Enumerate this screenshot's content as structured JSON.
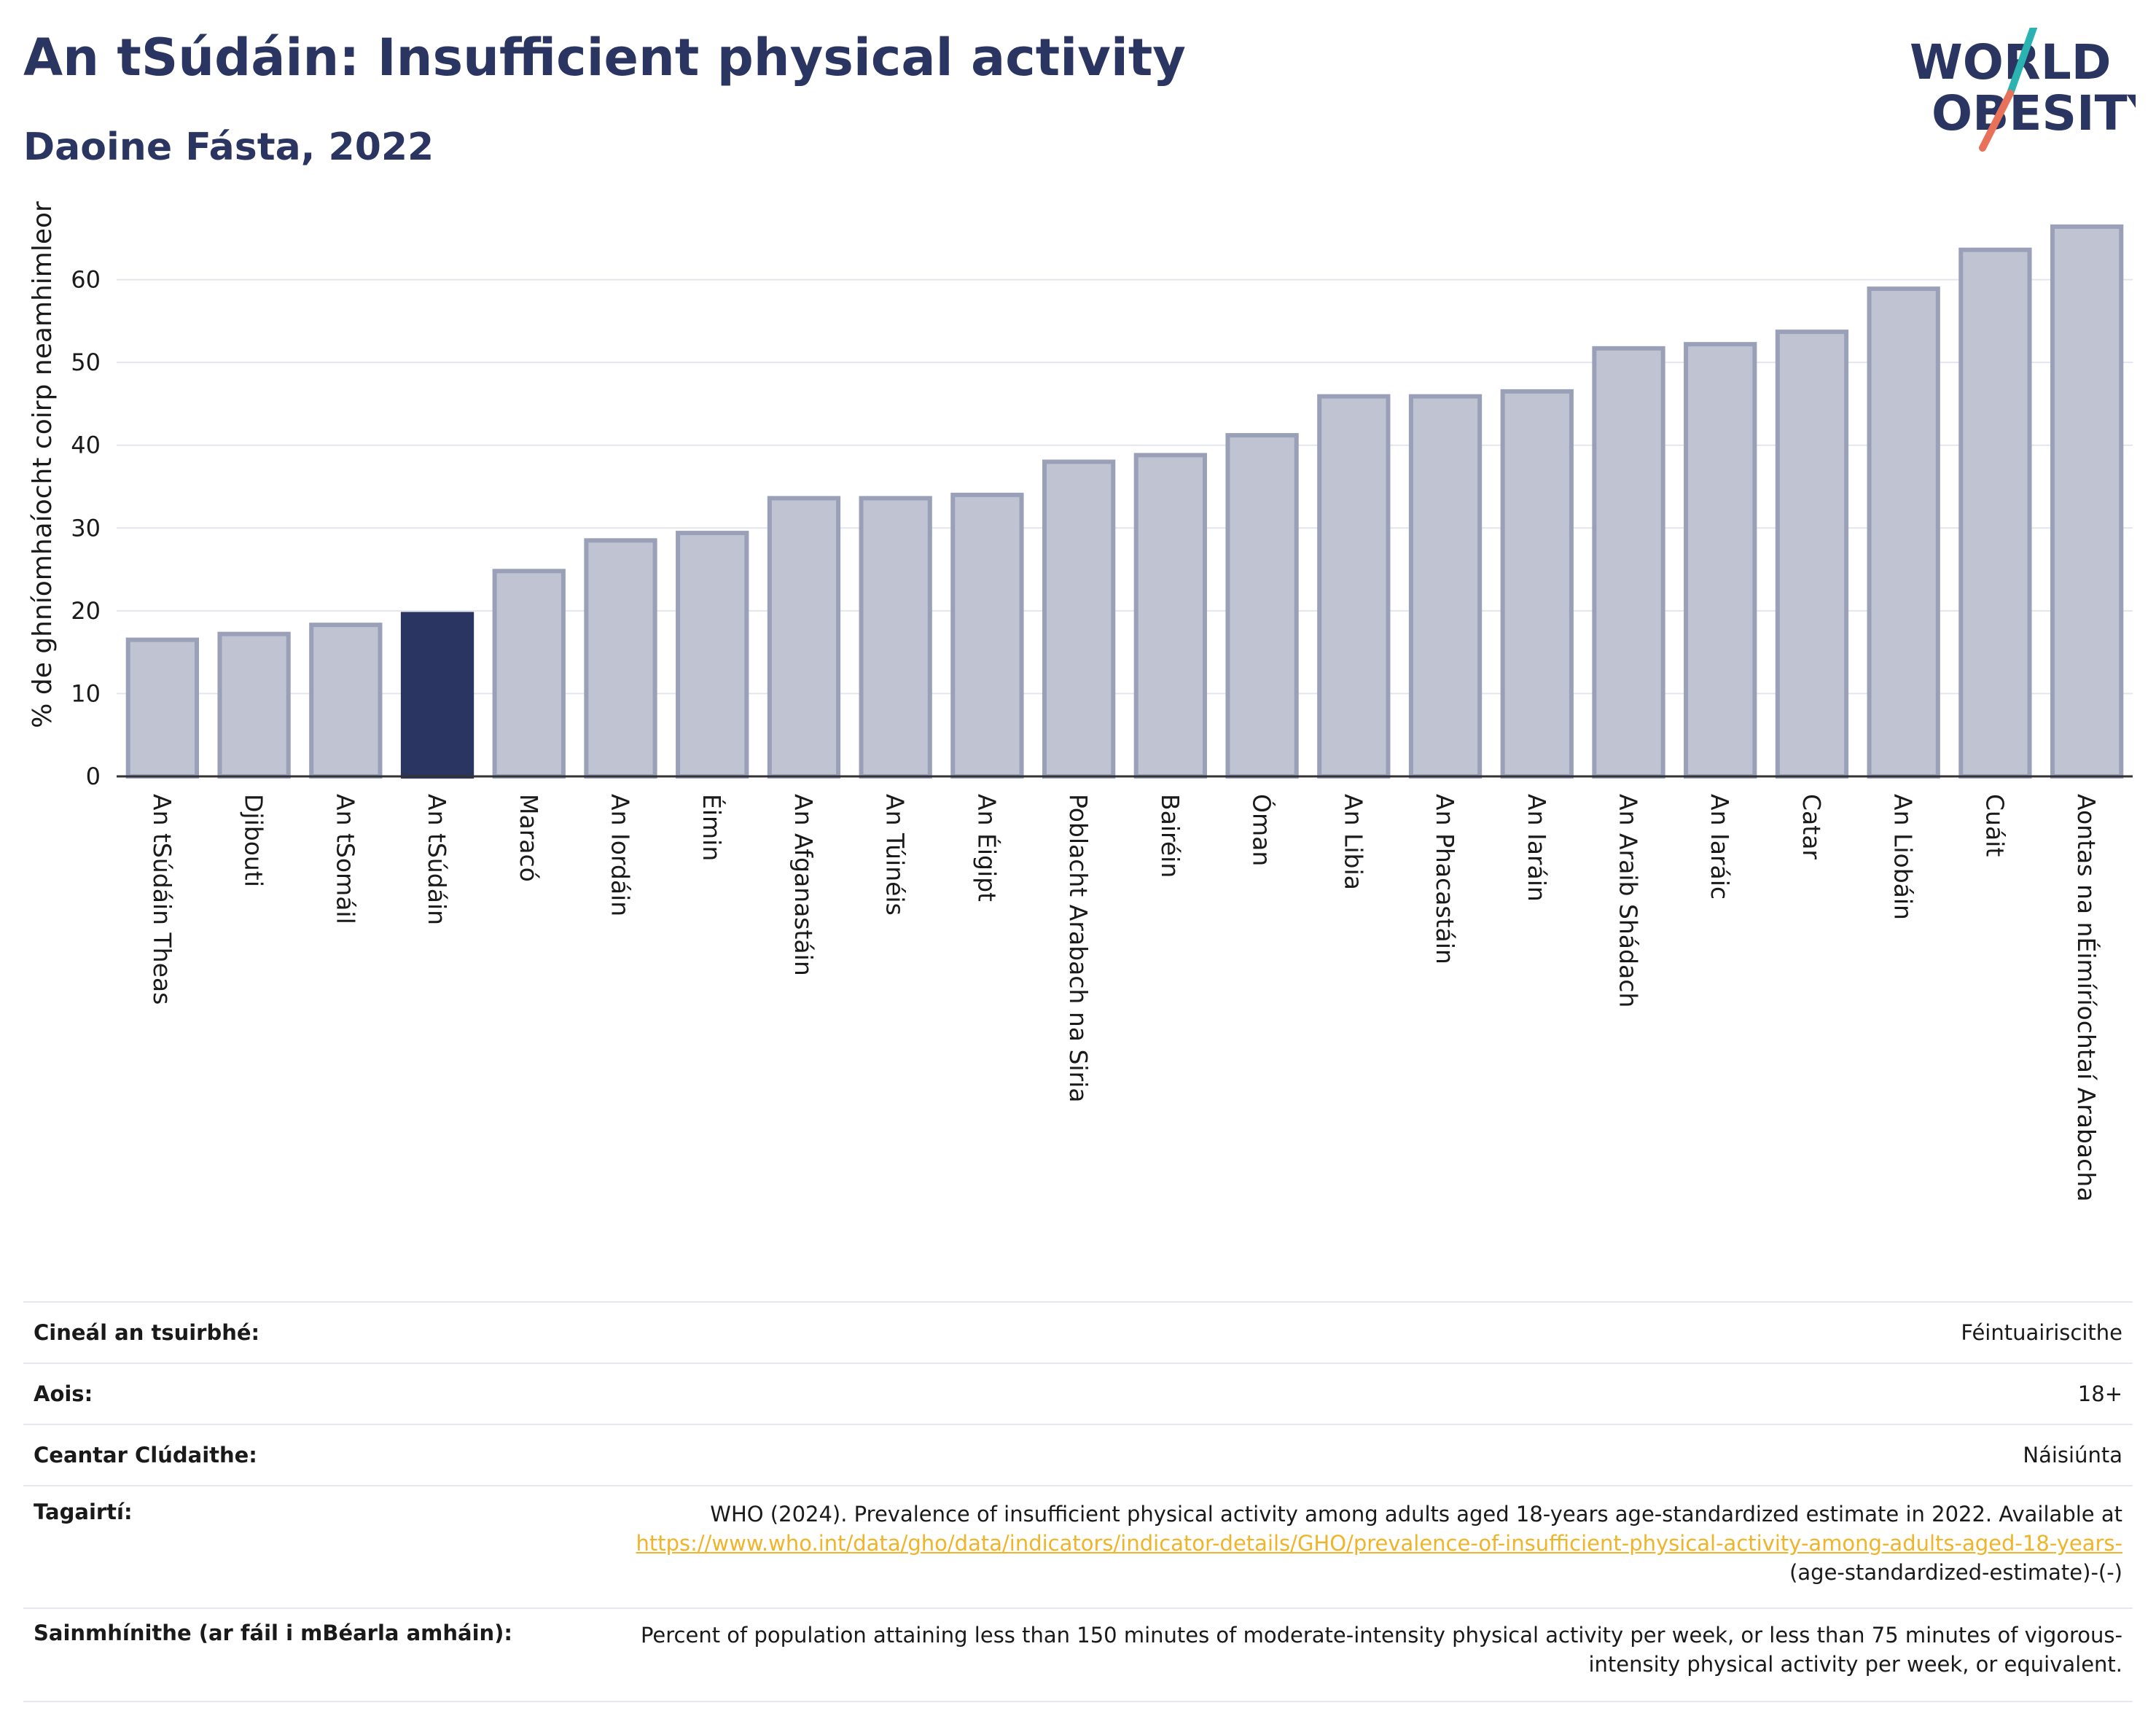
{
  "header": {
    "title": "An tSúdáin: Insufficient physical activity",
    "subtitle": "Daoine Fásta, 2022",
    "logo_line1": "WORLD",
    "logo_line2": "OBESITY"
  },
  "chart_data": {
    "type": "bar",
    "title": "An tSúdáin: Insufficient physical activity",
    "subtitle": "Daoine Fásta, 2022",
    "ylabel": "% de ghníomhaíocht coirp neamhimleor",
    "xlabel": "",
    "ylim": [
      0,
      70
    ],
    "yticks": [
      0,
      10,
      20,
      30,
      40,
      50,
      60
    ],
    "grid": true,
    "highlight": "An tSúdáin",
    "highlight_color": "#2b3561",
    "bar_color": "#bfc3d2",
    "bar_edge_color": "#9aa0b8",
    "categories": [
      "An tSúdáin Theas",
      "Djibouti",
      "An tSomáil",
      "An tSúdáin",
      "Maracó",
      "An Iordáin",
      "Éimin",
      "An Afganastáin",
      "An Túinéis",
      "An Éigipt",
      "Poblacht Arabach na Siria",
      "Bairéin",
      "Óman",
      "An Libia",
      "An Phacastáin",
      "An Iaráin",
      "An Araib Shádach",
      "An Iaráic",
      "Catar",
      "An Liobáin",
      "Cuáit",
      "Aontas na nÉimíríochtaí Arabacha"
    ],
    "values": [
      16.5,
      17.2,
      18.3,
      19.6,
      24.8,
      28.5,
      29.4,
      33.6,
      33.6,
      34.0,
      38.0,
      38.8,
      41.2,
      45.9,
      45.9,
      46.5,
      51.7,
      52.2,
      53.7,
      58.9,
      63.6,
      66.4
    ]
  },
  "info": {
    "survey_type_label": "Cineál an tsuirbhé:",
    "survey_type_value": "Féintuairiscithe",
    "age_label": "Aois:",
    "age_value": "18+",
    "coverage_label": "Ceantar Clúdaithe:",
    "coverage_value": "Náisiúnta",
    "references_label": "Tagairtí:",
    "references_text": "WHO (2024). Prevalence of insufficient physical activity among adults aged 18-years age-standardized estimate in 2022. Available at",
    "references_link": "https://www.who.int/data/gho/data/indicators/indicator-details/GHO/prevalence-of-insufficient-physical-activity-among-adults-aged-18-years-",
    "references_suffix": "(age-standardized-estimate)-(-)",
    "definitions_label": "Sainmhínithe (ar fáil i mBéarla amháin):",
    "definitions_text": "Percent of population attaining less than 150 minutes of moderate-intensity physical activity per week, or less than 75 minutes of vigorous-intensity physical activity per week, or equivalent."
  }
}
